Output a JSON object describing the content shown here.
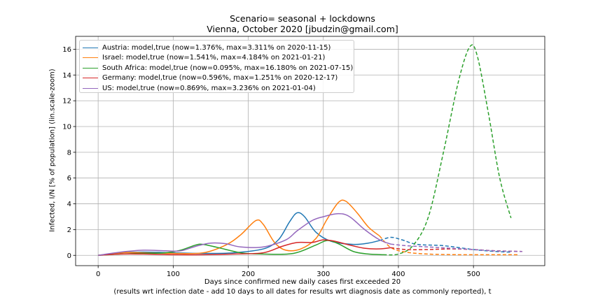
{
  "chart_data": {
    "type": "line",
    "title": "Scenario= seasonal + lockdowns",
    "subtitle": "Vienna, October 2020 [jbudzin@gmail.com]",
    "xlabel_line1": "Days since confirmed new daily cases first exceeded 20",
    "xlabel_line2": "(results wrt infection date - add 10 days to all dates for results wrt diagnosis date as commonly reported), t",
    "ylabel": "Infected, I/N [% of population] (lin.scale-zoom)",
    "xlim": [
      -30,
      595
    ],
    "ylim": [
      -0.8,
      17
    ],
    "xticks": [
      0,
      100,
      200,
      300,
      400,
      500
    ],
    "yticks": [
      0,
      2,
      4,
      6,
      8,
      10,
      12,
      14,
      16
    ],
    "grid": true,
    "legend_position": "top-left",
    "series": [
      {
        "name": "Austria: model,true (now=1.376%, max=3.311% on 2020-11-15)",
        "color": "#1f77b4",
        "solid": [
          [
            0,
            0
          ],
          [
            30,
            0.2
          ],
          [
            60,
            0.25
          ],
          [
            100,
            0.2
          ],
          [
            140,
            0.15
          ],
          [
            180,
            0.2
          ],
          [
            220,
            0.5
          ],
          [
            240,
            1.2
          ],
          [
            255,
            2.6
          ],
          [
            265,
            3.3
          ],
          [
            275,
            3.0
          ],
          [
            290,
            1.8
          ],
          [
            310,
            1.1
          ],
          [
            340,
            0.85
          ],
          [
            360,
            0.95
          ],
          [
            375,
            1.15
          ]
        ],
        "dashed": [
          [
            375,
            1.15
          ],
          [
            390,
            1.4
          ],
          [
            405,
            1.2
          ],
          [
            425,
            0.85
          ],
          [
            460,
            0.75
          ],
          [
            500,
            0.45
          ],
          [
            530,
            0.3
          ],
          [
            550,
            0.25
          ]
        ]
      },
      {
        "name": "Israel: model,true (now=1.541%, max=4.184% on 2021-01-21)",
        "color": "#ff7f0e",
        "solid": [
          [
            0,
            0
          ],
          [
            30,
            0.2
          ],
          [
            60,
            0.2
          ],
          [
            100,
            0.15
          ],
          [
            140,
            0.2
          ],
          [
            170,
            0.8
          ],
          [
            190,
            1.6
          ],
          [
            210,
            2.7
          ],
          [
            220,
            2.4
          ],
          [
            235,
            1.0
          ],
          [
            250,
            0.4
          ],
          [
            270,
            0.5
          ],
          [
            290,
            1.3
          ],
          [
            305,
            2.8
          ],
          [
            320,
            4.1
          ],
          [
            330,
            4.2
          ],
          [
            345,
            3.3
          ],
          [
            360,
            2.2
          ],
          [
            375,
            1.5
          ]
        ],
        "dashed": [
          [
            375,
            1.5
          ],
          [
            390,
            0.6
          ],
          [
            410,
            0.25
          ],
          [
            440,
            0.1
          ],
          [
            480,
            0.05
          ],
          [
            520,
            0.05
          ],
          [
            560,
            0.05
          ]
        ]
      },
      {
        "name": "South Africa: model,true (now=0.095%, max=16.180% on 2021-07-15)",
        "color": "#2ca02c",
        "solid": [
          [
            0,
            0
          ],
          [
            30,
            0.1
          ],
          [
            60,
            0.15
          ],
          [
            90,
            0.2
          ],
          [
            110,
            0.4
          ],
          [
            130,
            0.8
          ],
          [
            140,
            0.85
          ],
          [
            160,
            0.6
          ],
          [
            190,
            0.2
          ],
          [
            220,
            0.1
          ],
          [
            260,
            0.15
          ],
          [
            290,
            0.8
          ],
          [
            305,
            1.15
          ],
          [
            320,
            0.9
          ],
          [
            340,
            0.3
          ],
          [
            360,
            0.1
          ],
          [
            380,
            0.05
          ]
        ],
        "dashed": [
          [
            380,
            0.05
          ],
          [
            400,
            0.1
          ],
          [
            420,
            0.8
          ],
          [
            440,
            3
          ],
          [
            460,
            8
          ],
          [
            480,
            13.5
          ],
          [
            495,
            16.18
          ],
          [
            505,
            15.5
          ],
          [
            520,
            11
          ],
          [
            535,
            6
          ],
          [
            550,
            2.9
          ]
        ]
      },
      {
        "name": "Germany: model,true (now=0.596%, max=1.251% on 2020-12-17)",
        "color": "#d62728",
        "solid": [
          [
            0,
            0
          ],
          [
            30,
            0.1
          ],
          [
            60,
            0.1
          ],
          [
            100,
            0.05
          ],
          [
            140,
            0.05
          ],
          [
            180,
            0.1
          ],
          [
            220,
            0.2
          ],
          [
            245,
            0.7
          ],
          [
            265,
            1.0
          ],
          [
            285,
            1.0
          ],
          [
            300,
            1.2
          ],
          [
            315,
            1.1
          ],
          [
            335,
            0.8
          ],
          [
            355,
            0.55
          ],
          [
            375,
            0.5
          ],
          [
            390,
            0.6
          ]
        ],
        "dashed": [
          [
            390,
            0.6
          ],
          [
            410,
            0.45
          ],
          [
            440,
            0.45
          ],
          [
            470,
            0.5
          ],
          [
            500,
            0.45
          ],
          [
            530,
            0.35
          ],
          [
            565,
            0.3
          ]
        ]
      },
      {
        "name": "US: model,true (now=0.869%, max=3.236% on 2021-01-04)",
        "color": "#9467bd",
        "solid": [
          [
            0,
            0
          ],
          [
            30,
            0.25
          ],
          [
            60,
            0.4
          ],
          [
            90,
            0.35
          ],
          [
            110,
            0.35
          ],
          [
            130,
            0.7
          ],
          [
            150,
            0.95
          ],
          [
            170,
            0.9
          ],
          [
            190,
            0.65
          ],
          [
            220,
            0.65
          ],
          [
            250,
            1.2
          ],
          [
            265,
            1.9
          ],
          [
            285,
            2.7
          ],
          [
            300,
            3.0
          ],
          [
            320,
            3.236
          ],
          [
            335,
            3.0
          ],
          [
            355,
            2.0
          ],
          [
            375,
            1.2
          ],
          [
            390,
            0.87
          ]
        ],
        "dashed": [
          [
            390,
            0.87
          ],
          [
            410,
            0.75
          ],
          [
            440,
            0.65
          ],
          [
            470,
            0.55
          ],
          [
            500,
            0.45
          ],
          [
            530,
            0.35
          ],
          [
            565,
            0.3
          ]
        ]
      }
    ]
  }
}
